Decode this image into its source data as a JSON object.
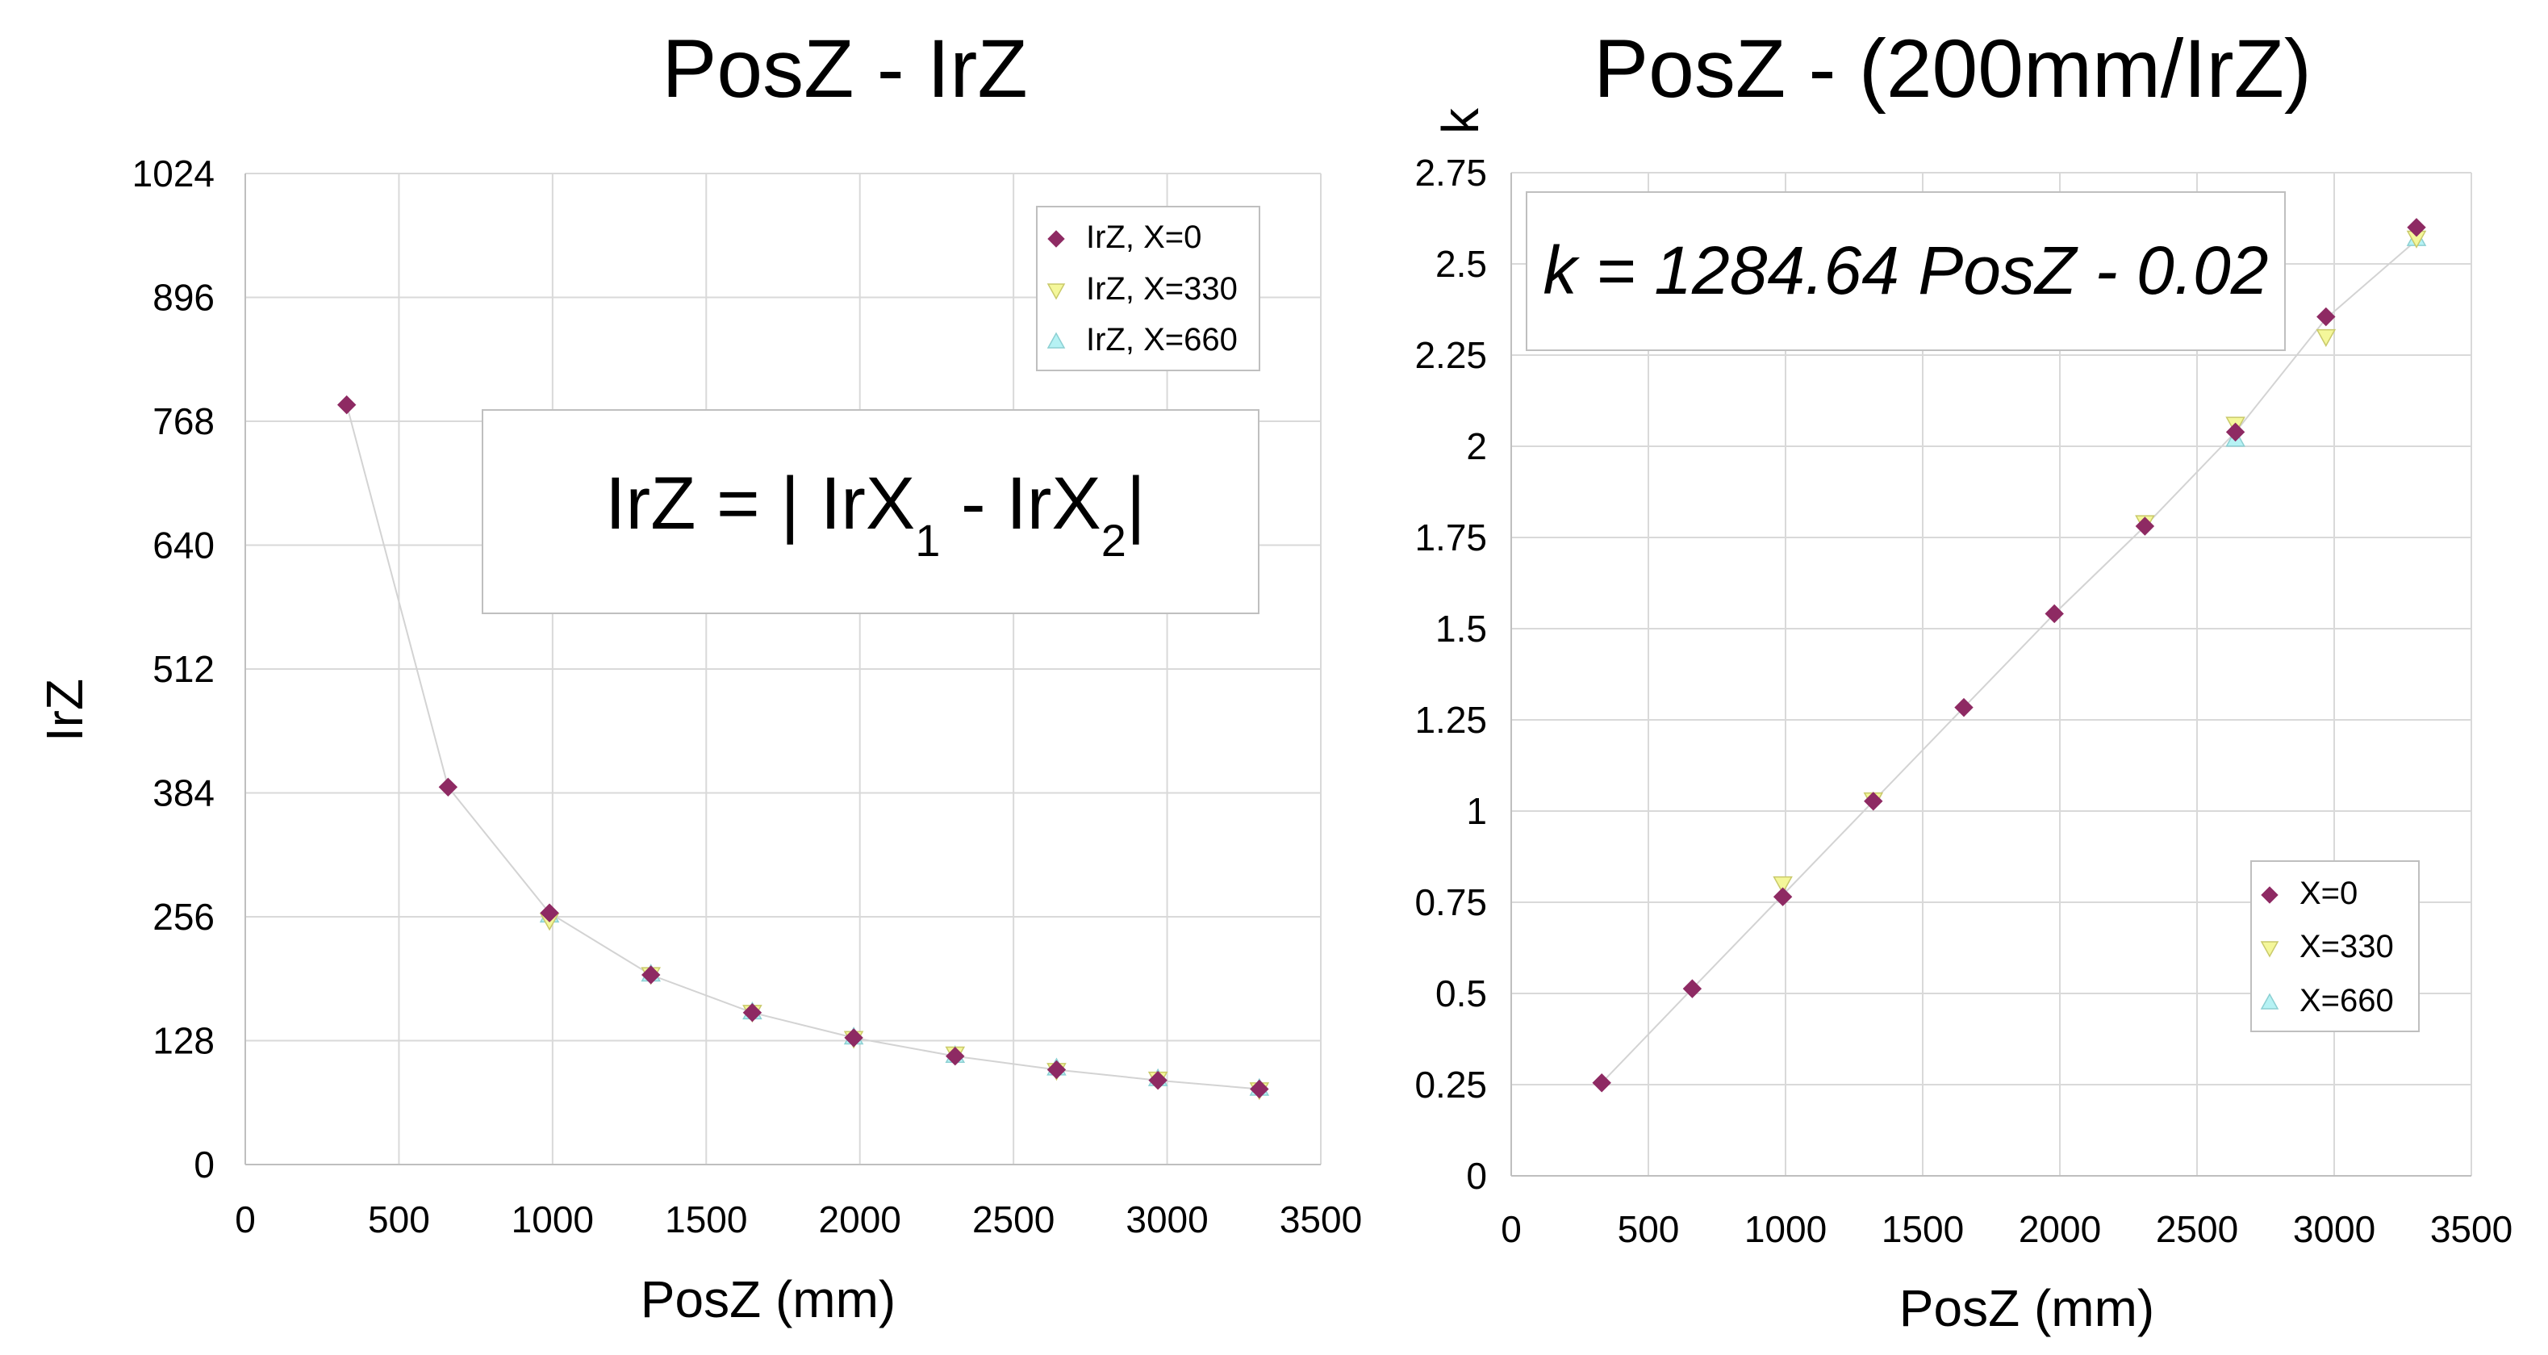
{
  "chart_data": [
    {
      "type": "scatter",
      "title": "PosZ - IrZ",
      "xlabel": "PosZ (mm)",
      "ylabel": "IrZ",
      "xlim": [
        0,
        3500
      ],
      "ylim": [
        0,
        1024
      ],
      "xticks": [
        0,
        500,
        1000,
        1500,
        2000,
        2500,
        3000,
        3500
      ],
      "yticks": [
        0,
        128,
        256,
        384,
        512,
        640,
        768,
        896,
        1024
      ],
      "xtick_labels": [
        "0",
        "500",
        "1000",
        "1500",
        "2000",
        "2500",
        "3000",
        "3500"
      ],
      "ytick_labels": [
        "0",
        "128",
        "256",
        "384",
        "512",
        "640",
        "768",
        "896",
        "1024"
      ],
      "grid": true,
      "legend_position": "top-right",
      "annotation": {
        "main": "IrZ = | IrX",
        "sub1": "1",
        "mid": " - IrX",
        "sub2": "2",
        "end": "|"
      },
      "trend_line": {
        "x": [
          330,
          660,
          990,
          1320,
          1650,
          1980,
          2310,
          2640,
          2970,
          3300
        ],
        "y": [
          785,
          390,
          260,
          196,
          157,
          131,
          112,
          98,
          87,
          78
        ]
      },
      "series": [
        {
          "name": "IrZ, X=0",
          "marker": "diamond",
          "color": "#8e2a63",
          "x": [
            330,
            660,
            990,
            1320,
            1650,
            1980,
            2310,
            2640,
            2970,
            3300
          ],
          "y": [
            785,
            390,
            260,
            196,
            157,
            131,
            112,
            98,
            87,
            78
          ]
        },
        {
          "name": "IrZ, X=330",
          "marker": "triangle-down",
          "color": "#f4f79a",
          "x": [
            990,
            1320,
            1650,
            1980,
            2310,
            2640,
            2970,
            3300
          ],
          "y": [
            252,
            196,
            157,
            130,
            114,
            97,
            88,
            77
          ]
        },
        {
          "name": "IrZ, X=660",
          "marker": "triangle-up",
          "color": "#b6f2f4",
          "x": [
            990,
            1320,
            1650,
            1980,
            2310,
            2640,
            2970,
            3300
          ],
          "y": [
            258,
            197,
            158,
            132,
            113,
            100,
            89,
            79
          ]
        }
      ]
    },
    {
      "type": "scatter",
      "title": "PosZ - (200mm/IrZ)",
      "xlabel": "PosZ (mm)",
      "ylabel": "k",
      "xlim": [
        0,
        3500
      ],
      "ylim": [
        0,
        2.75
      ],
      "xticks": [
        0,
        500,
        1000,
        1500,
        2000,
        2500,
        3000,
        3500
      ],
      "yticks": [
        0,
        0.25,
        0.5,
        0.75,
        1,
        1.25,
        1.5,
        1.75,
        2,
        2.25,
        2.5,
        2.75
      ],
      "xtick_labels": [
        "0",
        "500",
        "1000",
        "1500",
        "2000",
        "2500",
        "3000",
        "3500"
      ],
      "ytick_labels": [
        "0",
        "0.25",
        "0.5",
        "0.75",
        "1",
        "1.25",
        "1.5",
        "1.75",
        "2",
        "2.25",
        "2.5",
        "2.75"
      ],
      "grid": true,
      "legend_position": "bottom-right",
      "annotation": "k = 1284.64 PosZ - 0.02",
      "trend_line": {
        "x": [
          330,
          660,
          990,
          1320,
          1650,
          1980,
          2310,
          2640,
          2970,
          3300
        ],
        "y": [
          0.255,
          0.513,
          0.77,
          1.027,
          1.284,
          1.541,
          1.781,
          2.039,
          2.35,
          2.565
        ]
      },
      "series": [
        {
          "name": "X=0",
          "marker": "diamond",
          "color": "#8e2a63",
          "x": [
            330,
            660,
            990,
            1320,
            1650,
            1980,
            2310,
            2640,
            2970,
            3300
          ],
          "y": [
            0.255,
            0.513,
            0.765,
            1.027,
            1.284,
            1.541,
            1.781,
            2.039,
            2.355,
            2.6
          ]
        },
        {
          "name": "X=330",
          "marker": "triangle-down",
          "color": "#f4f79a",
          "x": [
            990,
            1320,
            2310,
            2640,
            2970,
            3300
          ],
          "y": [
            0.8,
            1.03,
            1.79,
            2.06,
            2.3,
            2.57
          ]
        },
        {
          "name": "X=660",
          "marker": "triangle-up",
          "color": "#b6f2f4",
          "x": [
            2640,
            3300
          ],
          "y": [
            2.02,
            2.57
          ]
        }
      ]
    }
  ]
}
